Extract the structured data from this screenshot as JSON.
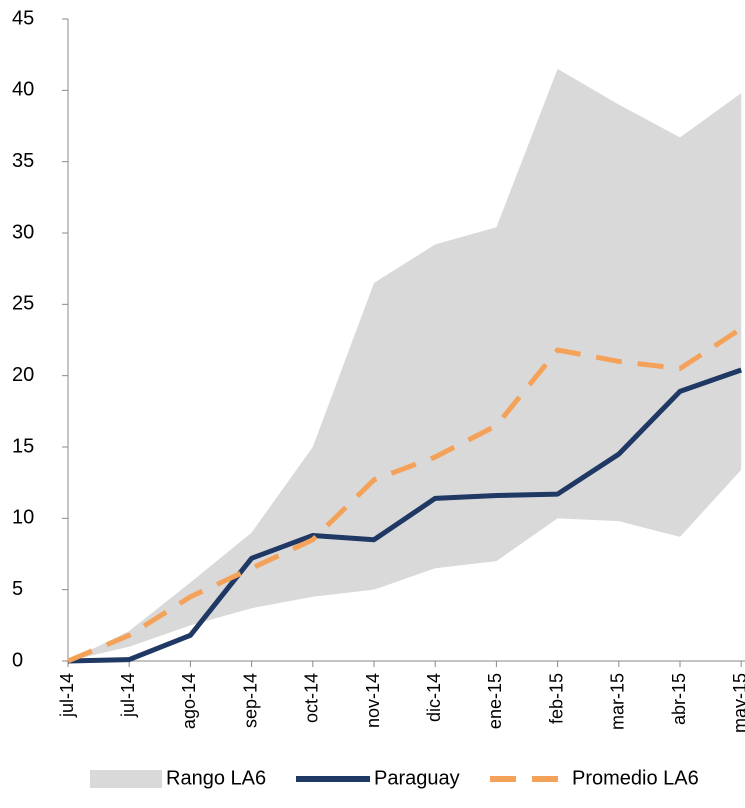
{
  "chart_data": {
    "type": "line",
    "categories": [
      "jul-14",
      "jul-14",
      "ago-14",
      "sep-14",
      "oct-14",
      "nov-14",
      "dic-14",
      "ene-15",
      "feb-15",
      "mar-15",
      "abr-15",
      "may-15"
    ],
    "range": {
      "name": "Rango LA6",
      "color": "#d9d9d9",
      "low": [
        0,
        1,
        2.5,
        3.7,
        4.5,
        5,
        6.5,
        7,
        10,
        9.8,
        8.7,
        13.4
      ],
      "high": [
        0,
        2.1,
        5.5,
        9,
        15,
        26.5,
        29.2,
        30.4,
        41.5,
        39,
        36.7,
        39.8
      ]
    },
    "series": [
      {
        "name": "Paraguay",
        "color": "#1f3864",
        "dashed": false,
        "values": [
          0,
          0.1,
          1.8,
          7.2,
          8.8,
          8.5,
          11.4,
          11.6,
          11.7,
          14.5,
          18.9,
          20.4
        ]
      },
      {
        "name": "Promedio LA6",
        "color": "#f4a259",
        "dashed": true,
        "values": [
          0,
          1.8,
          4.5,
          6.5,
          8.5,
          12.7,
          14.3,
          16.5,
          21.8,
          21,
          20.5,
          23.3
        ]
      }
    ],
    "ylim": [
      0,
      45
    ],
    "yticks": [
      0,
      5,
      10,
      15,
      20,
      25,
      30,
      35,
      40,
      45
    ]
  }
}
